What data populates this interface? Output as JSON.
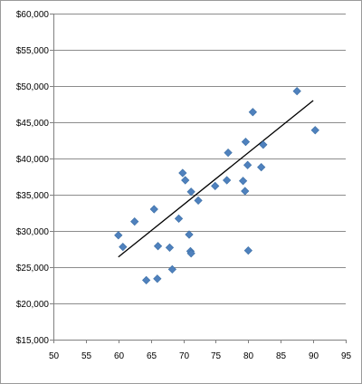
{
  "chart_data": {
    "type": "scatter",
    "title": "",
    "xlabel": "",
    "ylabel": "",
    "xlim": [
      50,
      95
    ],
    "ylim": [
      15000,
      60000
    ],
    "x_ticks": [
      50,
      55,
      60,
      65,
      70,
      75,
      80,
      85,
      90,
      95
    ],
    "x_tick_labels": [
      "50",
      "55",
      "60",
      "65",
      "70",
      "75",
      "80",
      "85",
      "90",
      "95"
    ],
    "y_ticks": [
      15000,
      20000,
      25000,
      30000,
      35000,
      40000,
      45000,
      50000,
      55000,
      60000
    ],
    "y_tick_labels": [
      "$15,000",
      "$20,000",
      "$25,000",
      "$30,000",
      "$35,000",
      "$40,000",
      "$45,000",
      "$50,000",
      "$55,000",
      "$60,000"
    ],
    "grid": "horizontal",
    "legend": "none",
    "series": [
      {
        "marker": "diamond",
        "color": "#4f81bd",
        "points": [
          {
            "x": 60.0,
            "y": 29400
          },
          {
            "x": 60.7,
            "y": 27800
          },
          {
            "x": 62.5,
            "y": 31300
          },
          {
            "x": 64.3,
            "y": 23200
          },
          {
            "x": 65.5,
            "y": 33000
          },
          {
            "x": 66.0,
            "y": 23400
          },
          {
            "x": 66.1,
            "y": 27900
          },
          {
            "x": 67.9,
            "y": 27700
          },
          {
            "x": 68.3,
            "y": 24700
          },
          {
            "x": 69.3,
            "y": 31700
          },
          {
            "x": 69.9,
            "y": 38000
          },
          {
            "x": 70.3,
            "y": 37000
          },
          {
            "x": 70.9,
            "y": 29500
          },
          {
            "x": 71.1,
            "y": 27200
          },
          {
            "x": 71.2,
            "y": 35400
          },
          {
            "x": 71.2,
            "y": 26900
          },
          {
            "x": 72.3,
            "y": 34200
          },
          {
            "x": 74.9,
            "y": 36200
          },
          {
            "x": 76.7,
            "y": 37000
          },
          {
            "x": 76.9,
            "y": 40800
          },
          {
            "x": 79.2,
            "y": 36900
          },
          {
            "x": 79.5,
            "y": 35500
          },
          {
            "x": 79.6,
            "y": 42300
          },
          {
            "x": 79.9,
            "y": 39100
          },
          {
            "x": 80.0,
            "y": 27300
          },
          {
            "x": 80.7,
            "y": 46400
          },
          {
            "x": 82.0,
            "y": 38800
          },
          {
            "x": 82.3,
            "y": 41900
          },
          {
            "x": 87.5,
            "y": 49300
          },
          {
            "x": 90.3,
            "y": 43900
          }
        ]
      }
    ],
    "trendline": {
      "type": "linear",
      "color": "#000000",
      "from": {
        "x": 60,
        "y": 26400
      },
      "to": {
        "x": 90,
        "y": 48000
      }
    }
  }
}
